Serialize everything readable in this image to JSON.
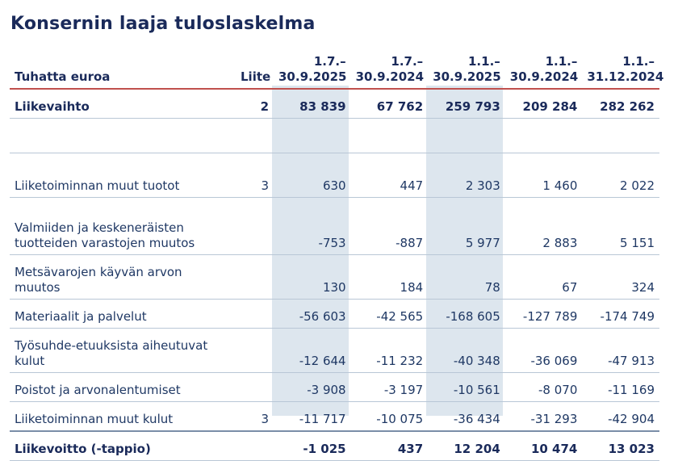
{
  "title": "Konsernin laaja tuloslaskelma",
  "header": {
    "label": "Tuhatta euroa",
    "note": "Liite",
    "columns": [
      {
        "line1": "1.7.–",
        "line2": "30.9.2025"
      },
      {
        "line1": "1.7.–",
        "line2": "30.9.2024"
      },
      {
        "line1": "1.1.–",
        "line2": "30.9.2025"
      },
      {
        "line1": "1.1.–",
        "line2": "30.9.2024"
      },
      {
        "line1": "1.1.–",
        "line2": "31.12.2024"
      }
    ]
  },
  "rows": [
    {
      "label": "Liikevaihto",
      "note": "2",
      "values": [
        "83 839",
        "67 762",
        "259 793",
        "209 284",
        "282 262"
      ]
    },
    {
      "label": "",
      "note": "",
      "values": [
        "",
        "",
        "",
        "",
        ""
      ]
    },
    {
      "label": "Liiketoiminnan muut tuotot",
      "note": "3",
      "values": [
        "630",
        "447",
        "2 303",
        "1 460",
        "2 022"
      ]
    },
    {
      "label": "Valmiiden ja keskeneräisten tuotteiden varastojen muutos",
      "note": "",
      "values": [
        "-753",
        "-887",
        "5 977",
        "2 883",
        "5 151"
      ]
    },
    {
      "label": "Metsävarojen käyvän arvon muutos",
      "note": "",
      "values": [
        "130",
        "184",
        "78",
        "67",
        "324"
      ]
    },
    {
      "label": "Materiaalit ja palvelut",
      "note": "",
      "values": [
        "-56 603",
        "-42 565",
        "-168 605",
        "-127 789",
        "-174 749"
      ]
    },
    {
      "label": "Työsuhde-etuuksista aiheutuvat kulut",
      "note": "",
      "values": [
        "-12 644",
        "-11 232",
        "-40 348",
        "-36 069",
        "-47 913"
      ]
    },
    {
      "label": "Poistot ja arvonalentumiset",
      "note": "",
      "values": [
        "-3 908",
        "-3 197",
        "-10 561",
        "-8 070",
        "-11 169"
      ]
    },
    {
      "label": "Liiketoiminnan muut kulut",
      "note": "3",
      "values": [
        "-11 717",
        "-10 075",
        "-36 434",
        "-31 293",
        "-42 904"
      ]
    },
    {
      "label": "Liikevoitto (-tappio)",
      "note": "",
      "values": [
        "-1 025",
        "437",
        "12 204",
        "10 474",
        "13 023"
      ]
    }
  ]
}
